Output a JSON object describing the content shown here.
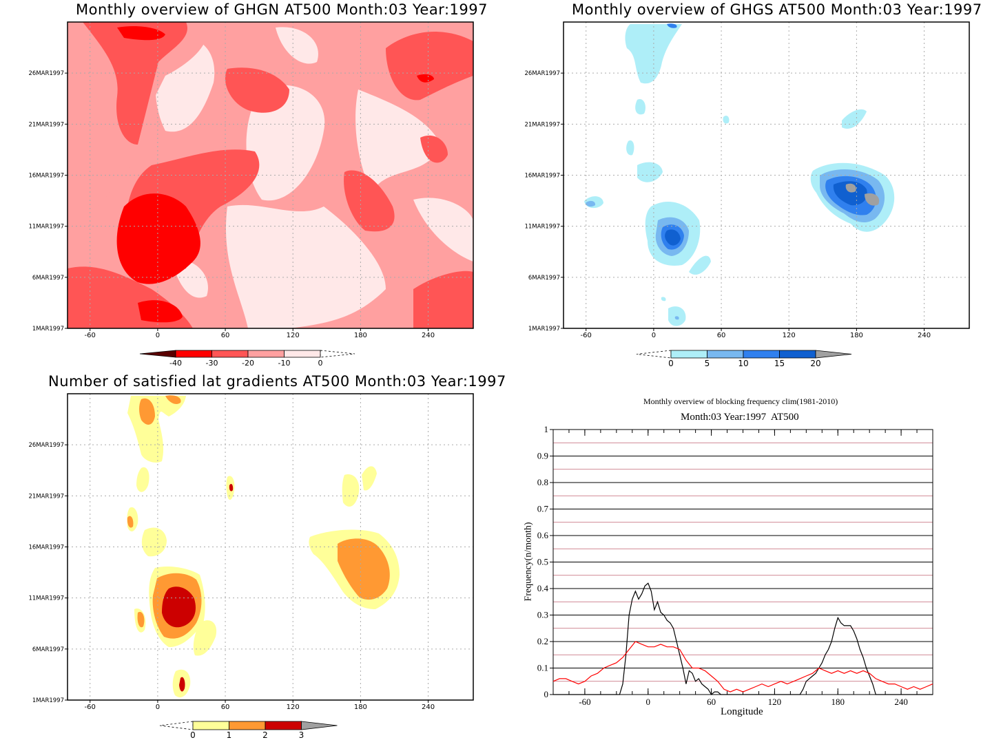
{
  "chart_data": [
    {
      "type": "heatmap",
      "id": "ghgn",
      "title": "Monthly overview of GHGN AT500 Month:03 Year:1997",
      "x_ticks": [
        -60,
        0,
        60,
        120,
        180,
        240
      ],
      "xlim": [
        -80,
        280
      ],
      "y_ticks": [
        "1MAR1997",
        "6MAR1997",
        "11MAR1997",
        "16MAR1997",
        "21MAR1997",
        "26MAR1997"
      ],
      "colorbar": {
        "ticks": [
          "-40",
          "-30",
          "-20",
          "-10",
          "0"
        ],
        "colors": [
          "#5a0000",
          "#ff0000",
          "#ff5555",
          "#ffa0a0",
          "#ffe8e8"
        ]
      }
    },
    {
      "type": "heatmap",
      "id": "ghgs",
      "title": "Monthly overview of GHGS AT500 Month:03 Year:1997",
      "x_ticks": [
        -60,
        0,
        60,
        120,
        180,
        240
      ],
      "xlim": [
        -80,
        280
      ],
      "y_ticks": [
        "1MAR1997",
        "6MAR1997",
        "11MAR1997",
        "16MAR1997",
        "21MAR1997",
        "26MAR1997"
      ],
      "colorbar": {
        "ticks": [
          "0",
          "5",
          "10",
          "15",
          "20"
        ],
        "colors": [
          "#aeeef8",
          "#78b8f0",
          "#3080ee",
          "#1060d0",
          "#a0a0a0"
        ]
      }
    },
    {
      "type": "heatmap",
      "id": "latgrad",
      "title": "Number of satisfied lat gradients AT500 Month:03 Year:1997",
      "x_ticks": [
        -60,
        0,
        60,
        120,
        180,
        240
      ],
      "xlim": [
        -80,
        280
      ],
      "y_ticks": [
        "1MAR1997",
        "6MAR1997",
        "11MAR1997",
        "16MAR1997",
        "21MAR1997",
        "26MAR1997"
      ],
      "colorbar": {
        "ticks": [
          "0",
          "1",
          "2",
          "3"
        ],
        "colors": [
          "#ffff99",
          "#ff9933",
          "#cc0000",
          "#a0a0a0"
        ]
      }
    },
    {
      "type": "line",
      "id": "blockfreq",
      "title": "Monthly overview of blocking frequency clim(1981-2010)",
      "subtitle": "Month:03 Year:1997  AT500",
      "xlabel": "Longitude",
      "ylabel": "Frequency(n/month)",
      "xlim": [
        -90,
        270
      ],
      "ylim": [
        0,
        1
      ],
      "x_ticks": [
        -60,
        0,
        60,
        120,
        180,
        240
      ],
      "y_ticks": [
        0,
        0.1,
        0.2,
        0.3,
        0.4,
        0.5,
        0.6,
        0.7,
        0.8,
        0.9,
        1
      ],
      "y_tick_labels": [
        "0",
        "0.1",
        "0.2",
        "0.3",
        "0.4",
        "0.5",
        "0.6",
        "0.7",
        "0.8",
        "0.9",
        "1"
      ],
      "grid": true,
      "series": [
        {
          "color": "#000000",
          "x": [
            -90,
            -30,
            -27,
            -24,
            -21,
            -18,
            -15,
            -12,
            -9,
            -6,
            -3,
            0,
            3,
            6,
            9,
            12,
            15,
            18,
            21,
            24,
            27,
            30,
            33,
            36,
            39,
            42,
            45,
            48,
            51,
            54,
            57,
            60,
            63,
            66,
            69,
            72,
            75,
            78,
            81,
            84,
            87,
            90,
            93,
            96,
            99,
            102,
            105,
            108,
            111,
            114,
            117,
            120,
            123,
            126,
            129,
            132,
            135,
            138,
            141,
            144,
            147,
            150,
            153,
            156,
            159,
            162,
            165,
            168,
            171,
            174,
            177,
            180,
            183,
            186,
            189,
            192,
            195,
            198,
            201,
            204,
            207,
            210,
            213,
            216,
            270
          ],
          "y": [
            0,
            0,
            0,
            0.04,
            0.15,
            0.3,
            0.36,
            0.39,
            0.36,
            0.38,
            0.41,
            0.42,
            0.39,
            0.32,
            0.35,
            0.31,
            0.3,
            0.28,
            0.27,
            0.25,
            0.2,
            0.15,
            0.1,
            0.04,
            0.09,
            0.08,
            0.05,
            0.06,
            0.04,
            0.03,
            0.02,
            0,
            0.01,
            0.01,
            0,
            0,
            0,
            0,
            0,
            0,
            0,
            0,
            0,
            0,
            0,
            0,
            0,
            0,
            0,
            0,
            0,
            0,
            0,
            0,
            0,
            0,
            0,
            0,
            0,
            0,
            0.02,
            0.05,
            0.06,
            0.07,
            0.08,
            0.1,
            0.12,
            0.15,
            0.17,
            0.2,
            0.25,
            0.29,
            0.27,
            0.26,
            0.26,
            0.26,
            0.24,
            0.21,
            0.17,
            0.14,
            0.1,
            0.07,
            0.04,
            0,
            0
          ]
        },
        {
          "color": "#ff0000",
          "x": [
            -90,
            -84,
            -78,
            -72,
            -66,
            -60,
            -54,
            -48,
            -42,
            -36,
            -30,
            -24,
            -18,
            -12,
            -6,
            0,
            6,
            12,
            18,
            24,
            30,
            36,
            42,
            48,
            54,
            60,
            66,
            72,
            78,
            84,
            90,
            96,
            102,
            108,
            114,
            120,
            126,
            132,
            138,
            144,
            150,
            156,
            162,
            168,
            174,
            180,
            186,
            192,
            198,
            204,
            210,
            216,
            222,
            228,
            234,
            240,
            246,
            252,
            258,
            264,
            270
          ],
          "y": [
            0.05,
            0.06,
            0.06,
            0.05,
            0.04,
            0.05,
            0.07,
            0.08,
            0.1,
            0.11,
            0.12,
            0.14,
            0.17,
            0.2,
            0.19,
            0.18,
            0.18,
            0.19,
            0.18,
            0.18,
            0.17,
            0.13,
            0.1,
            0.1,
            0.09,
            0.07,
            0.05,
            0.02,
            0.01,
            0.02,
            0.01,
            0.02,
            0.03,
            0.04,
            0.03,
            0.04,
            0.05,
            0.04,
            0.05,
            0.06,
            0.07,
            0.08,
            0.1,
            0.09,
            0.08,
            0.09,
            0.08,
            0.09,
            0.08,
            0.09,
            0.08,
            0.06,
            0.05,
            0.04,
            0.04,
            0.03,
            0.02,
            0.03,
            0.02,
            0.03,
            0.04
          ]
        }
      ]
    }
  ]
}
